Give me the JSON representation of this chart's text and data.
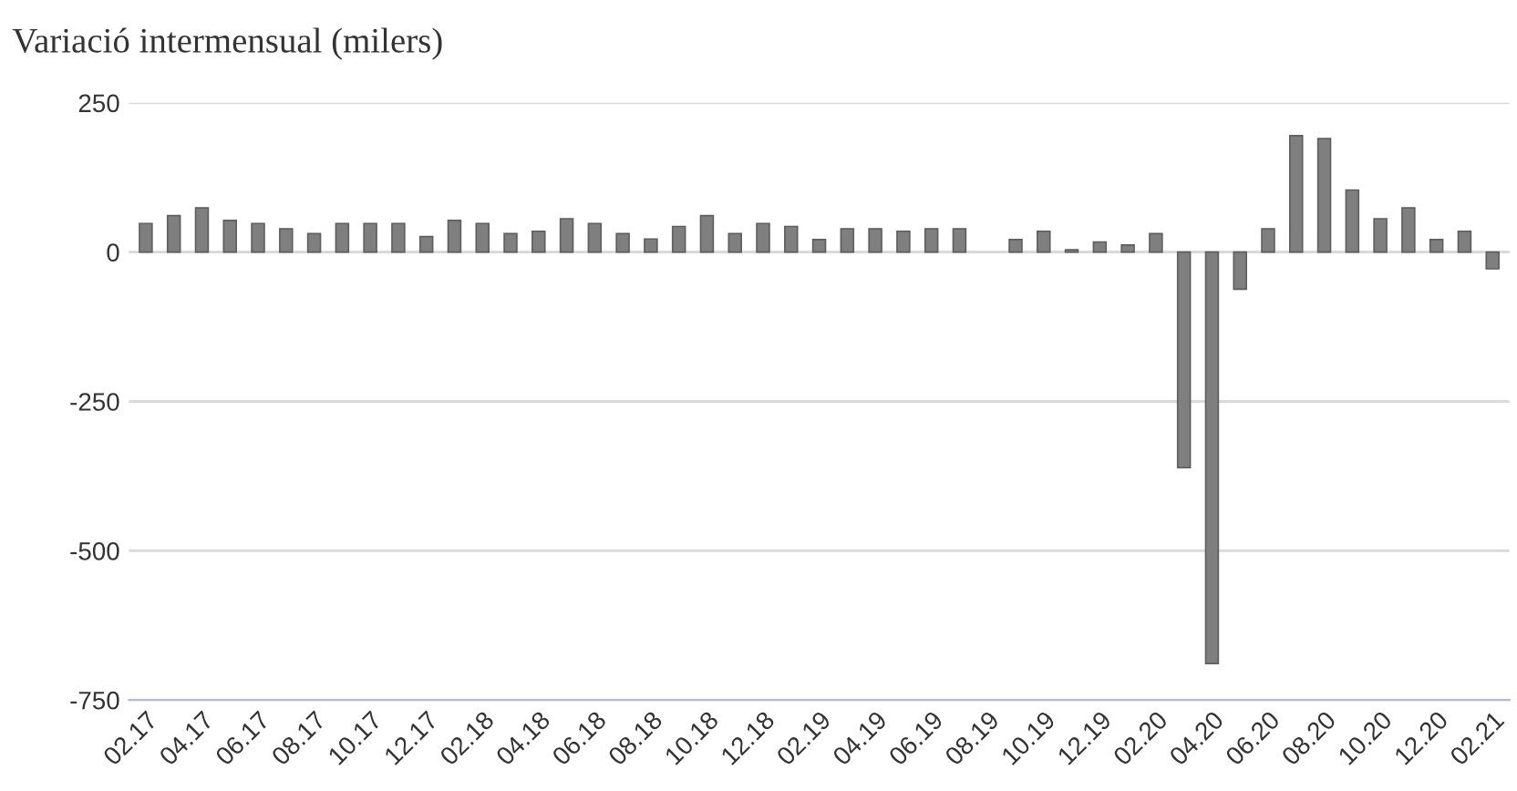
{
  "chart_data": {
    "type": "bar",
    "subtitle": "Variació intermensual (milers)",
    "categories": [
      "02.17",
      null,
      "04.17",
      null,
      "06.17",
      null,
      "08.17",
      null,
      "10.17",
      null,
      "12.17",
      null,
      "02.18",
      null,
      "04.18",
      null,
      "06.18",
      null,
      "08.18",
      null,
      "10.18",
      null,
      "12.18",
      null,
      "02.19",
      null,
      "04.19",
      null,
      "06.19",
      null,
      "08.19",
      null,
      "10.19",
      null,
      "12.19",
      null,
      "02.20",
      null,
      "04.20",
      null,
      "06.20",
      null,
      "08.20",
      null,
      "10.20",
      null,
      "12.20",
      null,
      "02.21"
    ],
    "values": [
      48,
      61,
      74,
      53,
      48,
      39,
      31,
      48,
      48,
      48,
      26,
      53,
      48,
      31,
      35,
      56,
      48,
      31,
      22,
      43,
      61,
      31,
      48,
      43,
      21,
      39,
      39,
      35,
      39,
      39,
      null,
      21,
      35,
      4,
      17,
      12,
      31,
      -361,
      -689,
      -62,
      39,
      195,
      190,
      104,
      56,
      74,
      21,
      35,
      -28
    ],
    "color": "#7f7f7f",
    "ylim": [
      -750,
      250
    ],
    "yticks": [
      -750,
      -500,
      -250,
      0,
      250
    ],
    "grid": "y"
  }
}
